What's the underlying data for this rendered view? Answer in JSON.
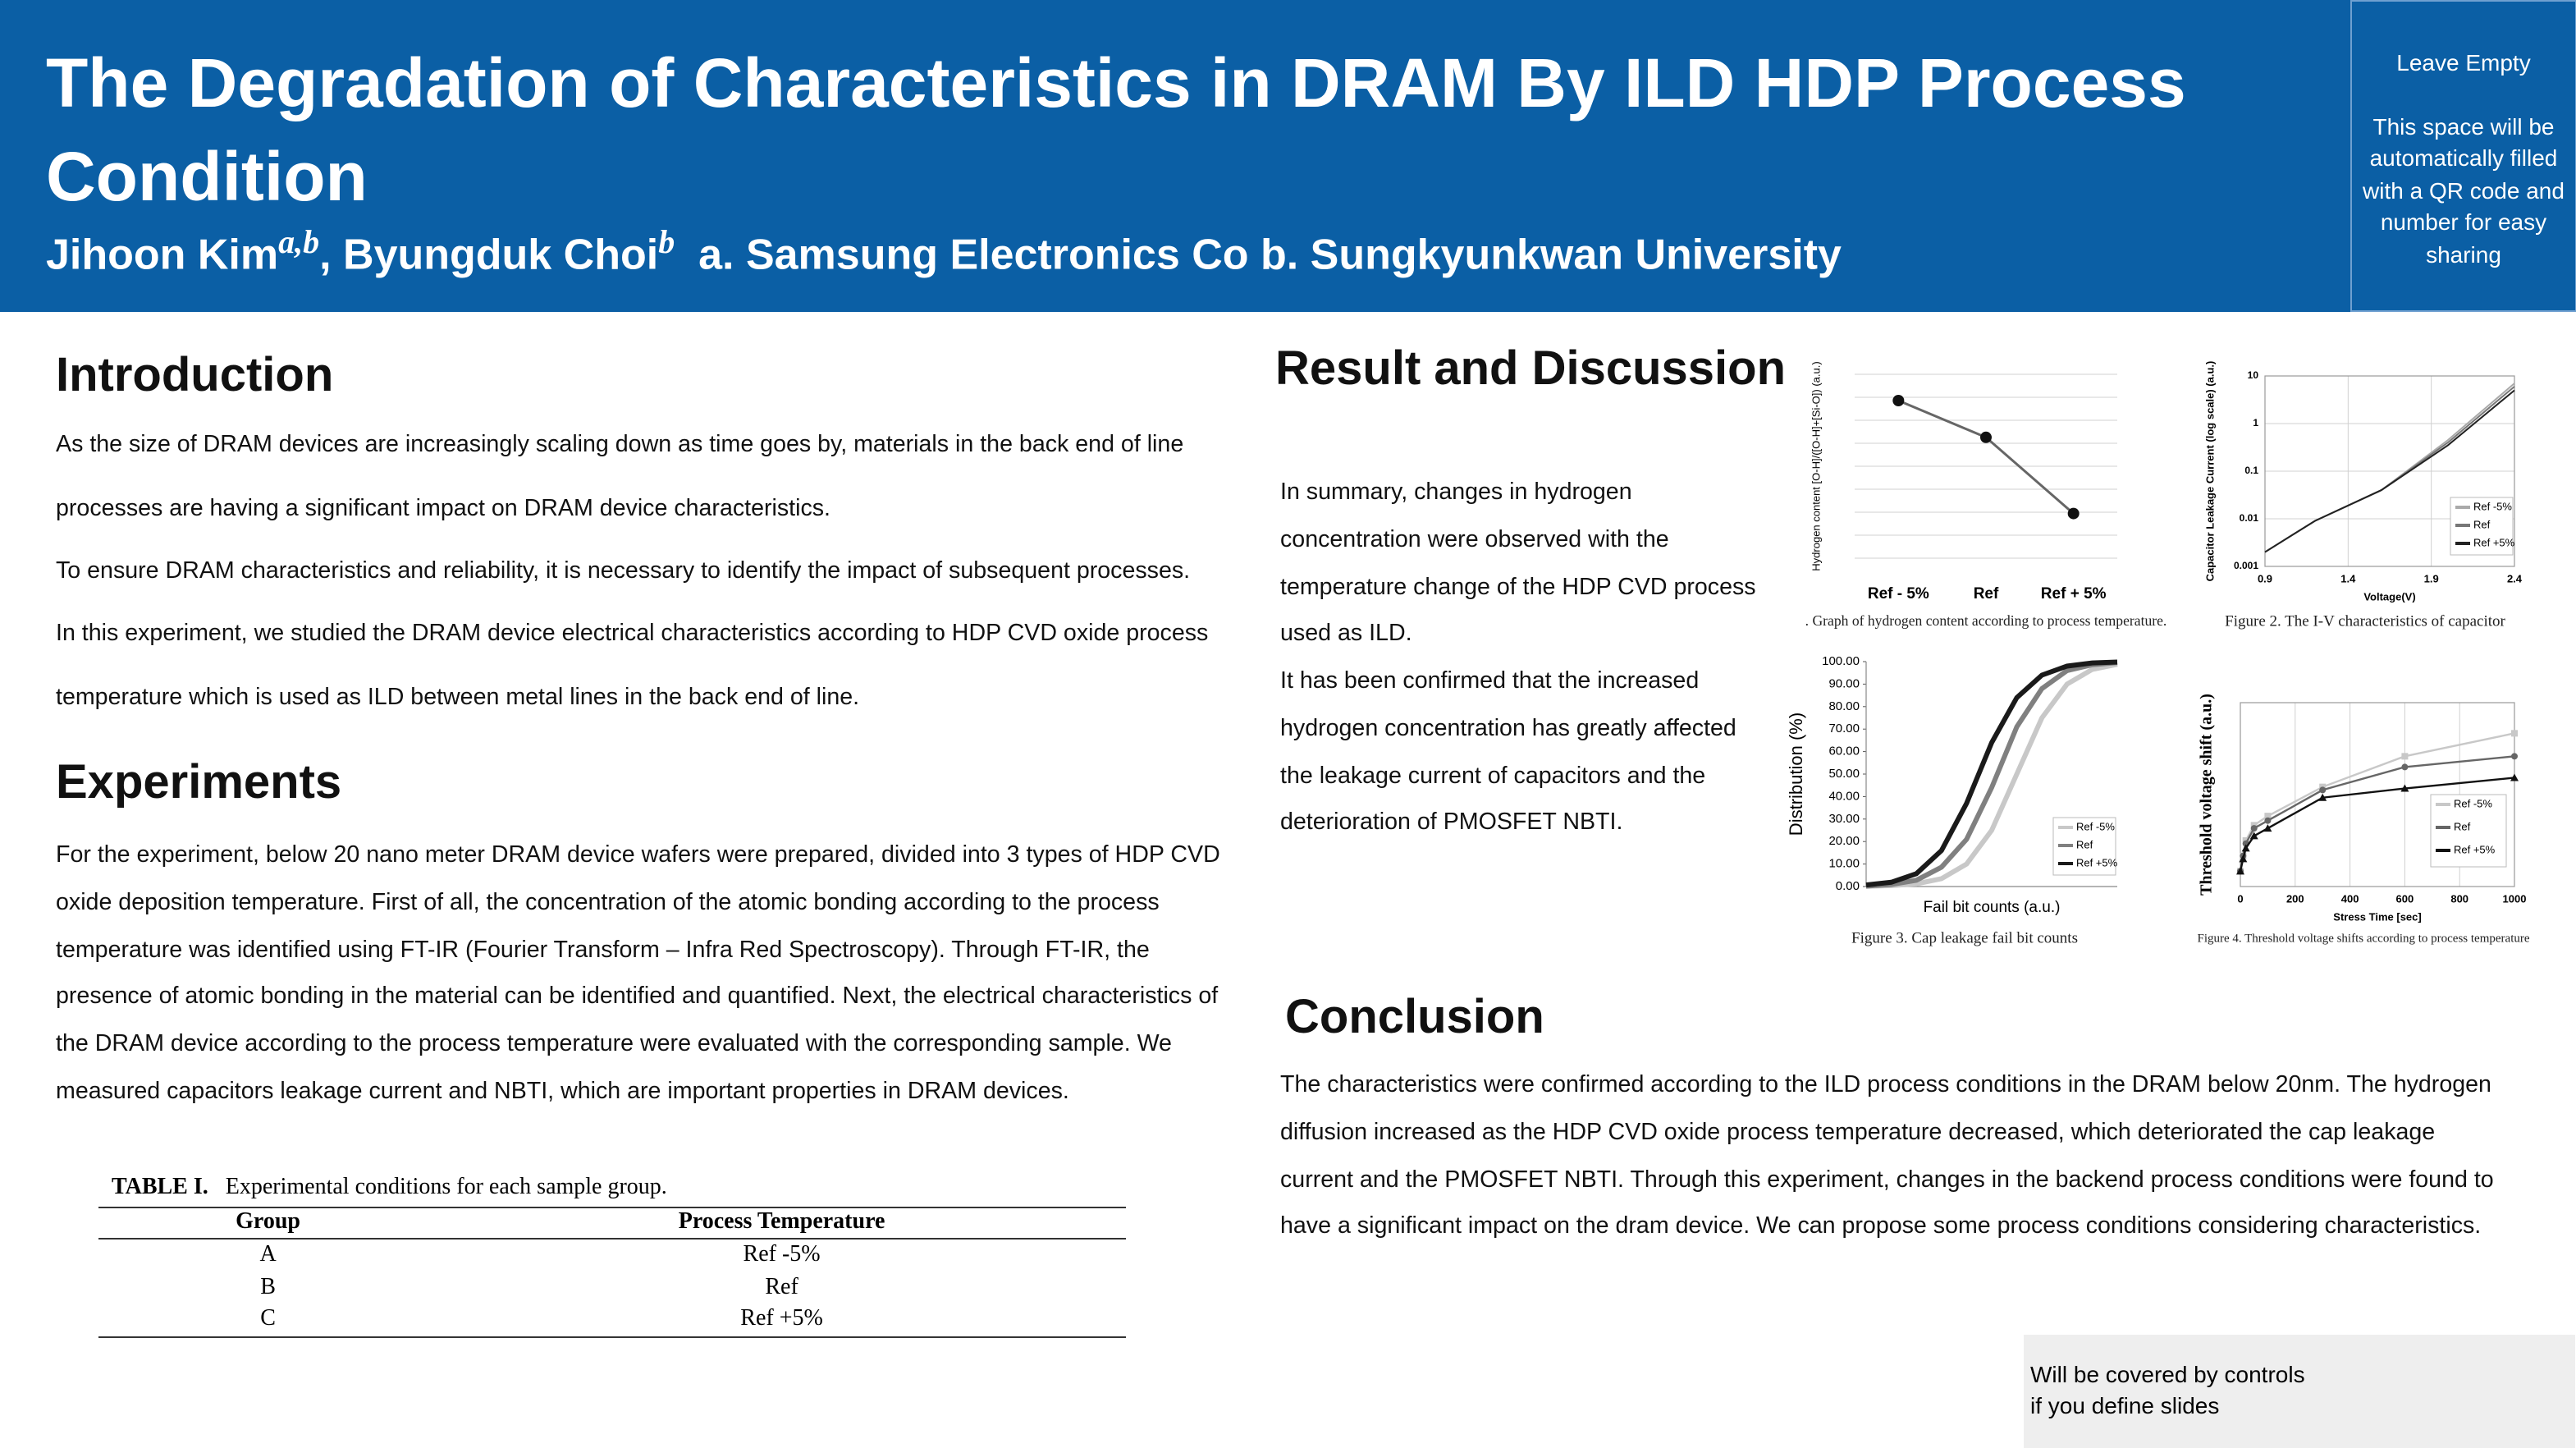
{
  "header": {
    "title": "The Degradation of Characteristics in DRAM By ILD HDP Process Condition",
    "author1": "Jihoon Kim",
    "author1_sup": "a,b",
    "author2": ", Byungduk Choi",
    "author2_sup": "b",
    "affiliations": "a. Samsung Electronics Co b. Sungkyunkwan University"
  },
  "qr": {
    "heading": "Leave Empty",
    "text": "This space will be automatically filled with a QR code and number for easy sharing"
  },
  "introduction": {
    "heading": "Introduction",
    "paragraphs": [
      "As the size of DRAM devices are increasingly scaling down as time goes by, materials in the back end of line processes are having a significant impact on DRAM device characteristics.",
      "To ensure DRAM characteristics and reliability, it is necessary to identify the impact of subsequent processes.",
      "In this experiment, we studied the DRAM device electrical characteristics according to HDP CVD oxide process temperature which is used as ILD between metal lines in the back end of line."
    ]
  },
  "experiments": {
    "heading": "Experiments",
    "paragraph": "For the experiment, below 20 nano meter DRAM device wafers were prepared, divided into 3 types of HDP CVD oxide deposition temperature. First of all, the concentration of the atomic bonding according to the process temperature was identified using FT-IR (Fourier Transform – Infra Red Spectroscopy). Through FT-IR, the presence of atomic bonding in the material can be identified and quantified. Next, the electrical characteristics of the DRAM device according to the process temperature were evaluated with the corresponding sample.  We measured capacitors leakage current and NBTI, which are important properties in DRAM devices."
  },
  "table": {
    "label": "TABLE I.",
    "caption": "Experimental conditions for each sample group.",
    "columns": [
      "Group",
      "Process Temperature"
    ],
    "rows": [
      [
        "A",
        "Ref -5%"
      ],
      [
        "B",
        "Ref"
      ],
      [
        "C",
        "Ref +5%"
      ]
    ]
  },
  "results": {
    "heading": "Result and Discussion",
    "paragraphs": [
      "In summary, changes in hydrogen concentration were observed with the temperature change of the HDP CVD process used as ILD.",
      "It has been confirmed that the increased hydrogen concentration has greatly affected the leakage current of capacitors and the deterioration of PMOSFET NBTI."
    ]
  },
  "conclusion": {
    "heading": "Conclusion",
    "paragraph": "The characteristics were confirmed according to the ILD process conditions in the DRAM below 20nm. The hydrogen diffusion increased as the HDP CVD oxide process temperature decreased, which deteriorated the cap leakage current and the PMOSFET NBTI. Through this experiment, changes in the backend process conditions were found to have a significant impact on the dram device. We can propose some process conditions considering characteristics."
  },
  "footer_note": {
    "lines": [
      "Will be covered by controls",
      "if you define slides"
    ]
  },
  "chart_data": [
    {
      "type": "line",
      "caption": ". Graph of hydrogen content according to process temperature.",
      "ylabel": "Hydrogen content [O-H]/([O-H]+[Si-O]) (a.u.)",
      "categories": [
        "Ref - 5%",
        "Ref",
        "Ref + 5%"
      ],
      "values": [
        6.0,
        4.6,
        1.7
      ],
      "ylim": [
        0,
        7
      ],
      "color": "#666666",
      "marker": "circle"
    },
    {
      "type": "line",
      "caption": "Figure 2. The I-V characteristics of capacitor",
      "xlabel": "Voltage(V)",
      "ylabel": "Capacitor Leakage Current (log scale) (a.u.)",
      "x": [
        0.9,
        1.2,
        1.6,
        2.0,
        2.4
      ],
      "xlim": [
        0.9,
        2.4
      ],
      "xticks": [
        0.9,
        1.4,
        1.9,
        2.4
      ],
      "ylim": [
        0.001,
        10
      ],
      "yticks": [
        0.001,
        0.01,
        0.1,
        1,
        10
      ],
      "log_y": true,
      "grid": true,
      "legend": "lower right",
      "series": [
        {
          "name": "Ref -5%",
          "color": "#aaaaaa",
          "values": [
            0.002,
            0.009,
            0.04,
            0.45,
            7
          ]
        },
        {
          "name": "Ref",
          "color": "#777777",
          "values": [
            0.002,
            0.009,
            0.04,
            0.4,
            6
          ]
        },
        {
          "name": "Ref +5%",
          "color": "#222222",
          "values": [
            0.002,
            0.009,
            0.04,
            0.35,
            5
          ]
        }
      ]
    },
    {
      "type": "line",
      "caption": "Figure 3. Cap leakage fail bit counts",
      "xlabel": "Fail bit counts (a.u.)",
      "ylabel": "Distribution (%)",
      "x": [
        0,
        1,
        2,
        3,
        4,
        5,
        6,
        7,
        8,
        9,
        10
      ],
      "xlim": [
        0,
        10
      ],
      "ylim": [
        0,
        100
      ],
      "yticks": [
        {
          "value": 0,
          "label": "0.00"
        },
        {
          "value": 10,
          "label": "10.00"
        },
        {
          "value": 20,
          "label": "20.00"
        },
        {
          "value": 30,
          "label": "30.00"
        },
        {
          "value": 40,
          "label": "40.00"
        },
        {
          "value": 50,
          "label": "50.00"
        },
        {
          "value": 60,
          "label": "60.00"
        },
        {
          "value": 70,
          "label": "70.00"
        },
        {
          "value": 80,
          "label": "80.00"
        },
        {
          "value": 90,
          "label": "90.00"
        },
        {
          "value": 100,
          "label": "100.00"
        }
      ],
      "grid": false,
      "legend": "lower right",
      "series": [
        {
          "name": "Ref -5%",
          "color": "#c8c8c8",
          "values": [
            0.1,
            0.4,
            1.2,
            3.5,
            10,
            25,
            50,
            75,
            90,
            96.5,
            98.8
          ]
        },
        {
          "name": "Ref",
          "color": "#808080",
          "values": [
            0.2,
            0.9,
            2.8,
            8.6,
            21,
            44,
            71,
            88,
            96,
            98.6,
            99.6
          ]
        },
        {
          "name": "Ref +5%",
          "color": "#1a1a1a",
          "values": [
            0.7,
            1.9,
            5.7,
            16,
            37,
            64,
            84,
            94,
            98,
            99.4,
            99.8
          ]
        }
      ]
    },
    {
      "type": "line",
      "caption": "Figure 4. Threshold voltage shifts according to process temperature",
      "xlabel": "Stress Time [sec]",
      "ylabel": "Threshold voltage shift (a.u.)",
      "x": [
        0,
        10,
        20,
        50,
        100,
        300,
        600,
        1000
      ],
      "xlim": [
        0,
        1000
      ],
      "xticks": [
        0,
        200,
        400,
        600,
        800,
        1000
      ],
      "ylim": [
        0,
        12
      ],
      "grid": true,
      "legend": "right",
      "series": [
        {
          "name": "Ref -5%",
          "color": "#c8c8c8",
          "marker": "square",
          "values": [
            1,
            2,
            3,
            4,
            4.6,
            6.5,
            8.5,
            10
          ]
        },
        {
          "name": "Ref",
          "color": "#666666",
          "marker": "circle",
          "values": [
            1,
            2,
            2.8,
            3.8,
            4.3,
            6.3,
            7.8,
            8.5
          ]
        },
        {
          "name": "Ref +5%",
          "color": "#111111",
          "marker": "triangle",
          "values": [
            1,
            1.8,
            2.5,
            3.3,
            3.8,
            5.8,
            6.4,
            7.1
          ]
        }
      ]
    }
  ]
}
